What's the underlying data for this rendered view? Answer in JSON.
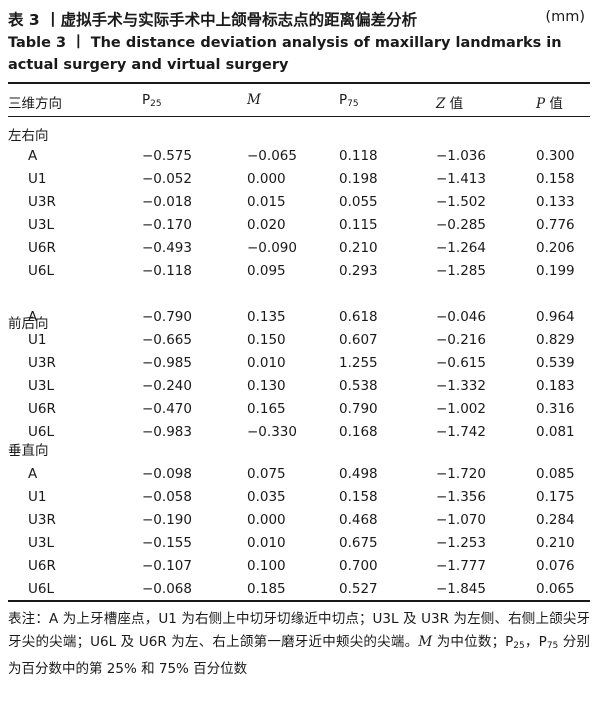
{
  "caption": {
    "title_zh": "表 3 丨虚拟手术与实际手术中上颌骨标志点的距离偏差分析",
    "unit": "(mm)",
    "title_en": "Table 3 丨 The distance deviation analysis of maxillary landmarks in actual surgery and virtual surgery"
  },
  "table": {
    "headers": {
      "direction": "三维方向",
      "p25_base": "P",
      "p25_sub": "25",
      "median": "M",
      "p75_base": "P",
      "p75_sub": "75",
      "z_italic": "Z",
      "z_suffix": " 值",
      "p_italic": "P",
      "p_suffix": " 值"
    },
    "groups": [
      {
        "name": "左右向",
        "rows": [
          {
            "point": "A",
            "p25": "−0.575",
            "m": "−0.065",
            "p75": "0.118",
            "z": "−1.036",
            "p": "0.300"
          },
          {
            "point": "U1",
            "p25": "−0.052",
            "m": "0.000",
            "p75": "0.198",
            "z": "−1.413",
            "p": "0.158"
          },
          {
            "point": "U3R",
            "p25": "−0.018",
            "m": "0.015",
            "p75": "0.055",
            "z": "−1.502",
            "p": "0.133"
          },
          {
            "point": "U3L",
            "p25": "−0.170",
            "m": "0.020",
            "p75": "0.115",
            "z": "−0.285",
            "p": "0.776"
          },
          {
            "point": "U6R",
            "p25": "−0.493",
            "m": "−0.090",
            "p75": "0.210",
            "z": "−1.264",
            "p": "0.206"
          },
          {
            "point": "U6L",
            "p25": "−0.118",
            "m": "0.095",
            "p75": "0.293",
            "z": "−1.285",
            "p": "0.199"
          }
        ]
      },
      {
        "name": "前后向",
        "rows": [
          {
            "point": "A",
            "p25": "−0.790",
            "m": "0.135",
            "p75": "0.618",
            "z": "−0.046",
            "p": "0.964"
          },
          {
            "point": "U1",
            "p25": "−0.665",
            "m": "0.150",
            "p75": "0.607",
            "z": "−0.216",
            "p": "0.829"
          },
          {
            "point": "U3R",
            "p25": "−0.985",
            "m": "0.010",
            "p75": "1.255",
            "z": "−0.615",
            "p": "0.539"
          },
          {
            "point": "U3L",
            "p25": "−0.240",
            "m": "0.130",
            "p75": "0.538",
            "z": "−1.332",
            "p": "0.183"
          },
          {
            "point": "U6R",
            "p25": "−0.470",
            "m": "0.165",
            "p75": "0.790",
            "z": "−1.002",
            "p": "0.316"
          },
          {
            "point": "U6L",
            "p25": "−0.983",
            "m": "−0.330",
            "p75": "0.168",
            "z": "−1.742",
            "p": "0.081"
          }
        ]
      },
      {
        "name": "垂直向",
        "rows": [
          {
            "point": "A",
            "p25": "−0.098",
            "m": "0.075",
            "p75": "0.498",
            "z": "−1.720",
            "p": "0.085"
          },
          {
            "point": "U1",
            "p25": "−0.058",
            "m": "0.035",
            "p75": "0.158",
            "z": "−1.356",
            "p": "0.175"
          },
          {
            "point": "U3R",
            "p25": "−0.190",
            "m": "0.000",
            "p75": "0.468",
            "z": "−1.070",
            "p": "0.284"
          },
          {
            "point": "U3L",
            "p25": "−0.155",
            "m": "0.010",
            "p75": "0.675",
            "z": "−1.253",
            "p": "0.210"
          },
          {
            "point": "U6R",
            "p25": "−0.107",
            "m": "0.100",
            "p75": "0.700",
            "z": "−1.777",
            "p": "0.076"
          },
          {
            "point": "U6L",
            "p25": "−0.068",
            "m": "0.185",
            "p75": "0.527",
            "z": "−1.845",
            "p": "0.065"
          }
        ]
      }
    ]
  },
  "note": {
    "part1": "表注：A 为上牙槽座点，U1 为右侧上中切牙切缘近中切点；U3L 及 U3R 为左侧、右侧上颌尖牙牙尖的尖端；U6L 及 U6R 为左、右上颌第一磨牙近中颊尖的尖端。",
    "m_italic": "M",
    "part2": " 为中位数；P",
    "sub25": "25",
    "part3": "，P",
    "sub75": "75",
    "part4": " 分别为百分数中的第 25% 和 75% 百分位数"
  }
}
